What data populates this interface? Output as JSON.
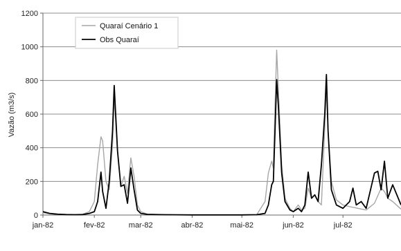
{
  "chart_data": {
    "type": "line",
    "title": "",
    "xlabel": "",
    "ylabel": "Vazão (m3/s)",
    "ylim": [
      0,
      1200
    ],
    "yticks": [
      0,
      200,
      400,
      600,
      800,
      1000,
      1200
    ],
    "xlim": [
      "1982-01-01",
      "1982-08-05"
    ],
    "xticks": [
      {
        "x": "1982-01-01",
        "label": "jan-82"
      },
      {
        "x": "1982-02-01",
        "label": "fev-82"
      },
      {
        "x": "1982-03-01",
        "label": "mar-82"
      },
      {
        "x": "1982-04-01",
        "label": "abr-82"
      },
      {
        "x": "1982-05-01",
        "label": "mai-82"
      },
      {
        "x": "1982-06-01",
        "label": "jun-82"
      },
      {
        "x": "1982-07-01",
        "label": "jul-82"
      }
    ],
    "grid": "horizontal",
    "legend_position": "top-left",
    "series": [
      {
        "name": "Quaraí Cenário 1",
        "color": "#a6a6a6",
        "points": [
          [
            "1982-01-01",
            15
          ],
          [
            "1982-01-05",
            8
          ],
          [
            "1982-01-10",
            3
          ],
          [
            "1982-01-15",
            2
          ],
          [
            "1982-01-20",
            2
          ],
          [
            "1982-01-25",
            5
          ],
          [
            "1982-01-29",
            20
          ],
          [
            "1982-02-01",
            80
          ],
          [
            "1982-02-03",
            300
          ],
          [
            "1982-02-05",
            465
          ],
          [
            "1982-02-06",
            440
          ],
          [
            "1982-02-08",
            200
          ],
          [
            "1982-02-10",
            150
          ],
          [
            "1982-02-12",
            420
          ],
          [
            "1982-02-13",
            700
          ],
          [
            "1982-02-15",
            380
          ],
          [
            "1982-02-17",
            170
          ],
          [
            "1982-02-19",
            230
          ],
          [
            "1982-02-21",
            130
          ],
          [
            "1982-02-23",
            340
          ],
          [
            "1982-02-25",
            230
          ],
          [
            "1982-02-27",
            60
          ],
          [
            "1982-03-01",
            20
          ],
          [
            "1982-03-05",
            5
          ],
          [
            "1982-03-15",
            2
          ],
          [
            "1982-04-01",
            1
          ],
          [
            "1982-04-15",
            1
          ],
          [
            "1982-05-01",
            1
          ],
          [
            "1982-05-10",
            3
          ],
          [
            "1982-05-15",
            80
          ],
          [
            "1982-05-17",
            250
          ],
          [
            "1982-05-19",
            320
          ],
          [
            "1982-05-20",
            280
          ],
          [
            "1982-05-21",
            650
          ],
          [
            "1982-05-22",
            980
          ],
          [
            "1982-05-23",
            750
          ],
          [
            "1982-05-25",
            300
          ],
          [
            "1982-05-27",
            100
          ],
          [
            "1982-05-30",
            40
          ],
          [
            "1982-06-01",
            20
          ],
          [
            "1982-06-04",
            60
          ],
          [
            "1982-06-06",
            30
          ],
          [
            "1982-06-08",
            40
          ],
          [
            "1982-06-10",
            160
          ],
          [
            "1982-06-12",
            100
          ],
          [
            "1982-06-14",
            120
          ],
          [
            "1982-06-16",
            80
          ],
          [
            "1982-06-18",
            60
          ],
          [
            "1982-06-20",
            520
          ],
          [
            "1982-06-21",
            750
          ],
          [
            "1982-06-22",
            500
          ],
          [
            "1982-06-24",
            200
          ],
          [
            "1982-06-27",
            90
          ],
          [
            "1982-07-01",
            60
          ],
          [
            "1982-07-05",
            50
          ],
          [
            "1982-07-10",
            40
          ],
          [
            "1982-07-15",
            30
          ],
          [
            "1982-07-20",
            70
          ],
          [
            "1982-07-24",
            160
          ],
          [
            "1982-07-26",
            140
          ],
          [
            "1982-07-28",
            100
          ],
          [
            "1982-07-31",
            80
          ],
          [
            "1982-08-05",
            35
          ]
        ]
      },
      {
        "name": "Obs Quaraí",
        "color": "#000000",
        "points": [
          [
            "1982-01-01",
            20
          ],
          [
            "1982-01-05",
            10
          ],
          [
            "1982-01-10",
            5
          ],
          [
            "1982-01-15",
            3
          ],
          [
            "1982-01-20",
            2
          ],
          [
            "1982-01-25",
            3
          ],
          [
            "1982-01-29",
            10
          ],
          [
            "1982-02-01",
            20
          ],
          [
            "1982-02-03",
            80
          ],
          [
            "1982-02-05",
            255
          ],
          [
            "1982-02-06",
            140
          ],
          [
            "1982-02-08",
            40
          ],
          [
            "1982-02-10",
            200
          ],
          [
            "1982-02-12",
            500
          ],
          [
            "1982-02-13",
            770
          ],
          [
            "1982-02-15",
            380
          ],
          [
            "1982-02-17",
            170
          ],
          [
            "1982-02-19",
            180
          ],
          [
            "1982-02-21",
            70
          ],
          [
            "1982-02-23",
            280
          ],
          [
            "1982-02-25",
            150
          ],
          [
            "1982-02-27",
            30
          ],
          [
            "1982-03-01",
            10
          ],
          [
            "1982-03-05",
            4
          ],
          [
            "1982-03-15",
            2
          ],
          [
            "1982-04-01",
            1
          ],
          [
            "1982-04-15",
            1
          ],
          [
            "1982-05-01",
            1
          ],
          [
            "1982-05-10",
            2
          ],
          [
            "1982-05-15",
            10
          ],
          [
            "1982-05-17",
            60
          ],
          [
            "1982-05-19",
            180
          ],
          [
            "1982-05-20",
            200
          ],
          [
            "1982-05-21",
            500
          ],
          [
            "1982-05-22",
            805
          ],
          [
            "1982-05-23",
            650
          ],
          [
            "1982-05-25",
            250
          ],
          [
            "1982-05-27",
            80
          ],
          [
            "1982-05-30",
            30
          ],
          [
            "1982-06-01",
            20
          ],
          [
            "1982-06-04",
            40
          ],
          [
            "1982-06-06",
            20
          ],
          [
            "1982-06-08",
            60
          ],
          [
            "1982-06-10",
            255
          ],
          [
            "1982-06-12",
            100
          ],
          [
            "1982-06-14",
            120
          ],
          [
            "1982-06-16",
            80
          ],
          [
            "1982-06-18",
            300
          ],
          [
            "1982-06-20",
            600
          ],
          [
            "1982-06-21",
            835
          ],
          [
            "1982-06-22",
            500
          ],
          [
            "1982-06-24",
            150
          ],
          [
            "1982-06-27",
            60
          ],
          [
            "1982-07-01",
            40
          ],
          [
            "1982-07-05",
            80
          ],
          [
            "1982-07-07",
            160
          ],
          [
            "1982-07-09",
            60
          ],
          [
            "1982-07-12",
            80
          ],
          [
            "1982-07-15",
            40
          ],
          [
            "1982-07-20",
            250
          ],
          [
            "1982-07-22",
            260
          ],
          [
            "1982-07-24",
            150
          ],
          [
            "1982-07-26",
            320
          ],
          [
            "1982-07-28",
            100
          ],
          [
            "1982-07-31",
            180
          ],
          [
            "1982-08-05",
            60
          ]
        ]
      }
    ]
  }
}
